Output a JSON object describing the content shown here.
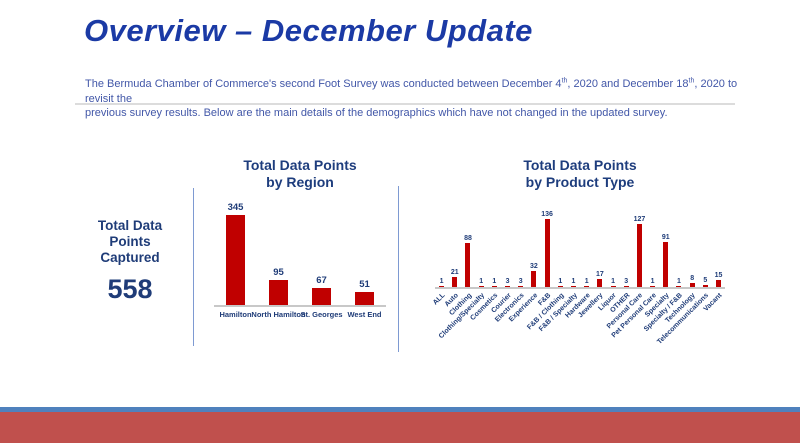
{
  "slide": {
    "title": "Overview – December Update",
    "subtitle": {
      "part1": "The Bermuda Chamber of Commerce's second Foot Survey was conducted between December 4",
      "sup1": "th",
      "part2": ", 2020 and December 18",
      "sup2": "th",
      "part3": ", 2020 to revisit the",
      "line2": "previous survey results. Below are the main details of the demographics which have not changed in the updated survey."
    }
  },
  "summary": {
    "label": "Total Data Points Captured",
    "value": "558"
  },
  "chart_data": [
    {
      "type": "bar",
      "title": "Total Data Points by Region",
      "title_lines": [
        "Total Data Points",
        "by Region"
      ],
      "categories": [
        "Hamilton",
        "North Hamilton",
        "St. Georges",
        "West End"
      ],
      "values": [
        345,
        95,
        67,
        51
      ],
      "ylim": [
        0,
        345
      ],
      "bar_color": "#C00000",
      "label_color": "#1F3C78",
      "grid": false,
      "legend": "none"
    },
    {
      "type": "bar",
      "title": "Total Data Points by Product Type",
      "title_lines": [
        "Total Data Points",
        "by Product Type"
      ],
      "categories": [
        "ALL",
        "Auto",
        "Clothing",
        "Clothing/Specialty",
        "Cosmetics",
        "Courier",
        "Electronics",
        "Experience",
        "F&B",
        "F&B / Clothing",
        "F&B / Specialty",
        "Hardware",
        "Jewellery",
        "Liquor",
        "OTHER",
        "Personal Care",
        "Pet Personal Care",
        "Specialty",
        "Specialty / F&B",
        "Technology",
        "Telecommunications",
        "Vacant"
      ],
      "values": [
        1,
        21,
        88,
        1,
        1,
        3,
        3,
        32,
        136,
        1,
        1,
        1,
        17,
        1,
        3,
        127,
        1,
        91,
        1,
        8,
        5,
        15
      ],
      "ylim": [
        0,
        136
      ],
      "bar_color": "#C00000",
      "label_color": "#1F3C78",
      "grid": false,
      "legend": "none"
    }
  ],
  "colors": {
    "title_blue": "#1B3AA5",
    "body_blue": "#4257A8",
    "navy": "#1F3C78",
    "bar_red": "#C00000",
    "footer_stripe": "#4F81BD",
    "footer_bar": "#C0504D"
  }
}
